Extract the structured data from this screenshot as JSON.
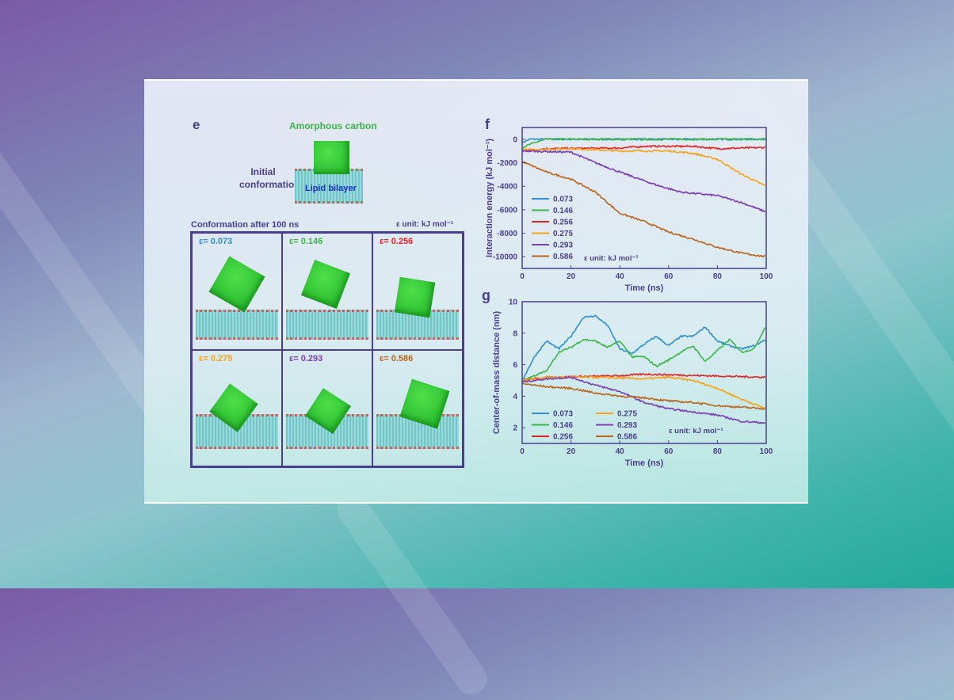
{
  "panel_e": {
    "label": "e",
    "top_label": "Amorphous carbon",
    "initial_label_1": "Initial",
    "initial_label_2": "conformation",
    "bilayer_label": "Lipid bilayer",
    "after_label": "Conformation after 100 ns",
    "unit_label": "ε unit: kJ mol⁻¹",
    "cells": [
      {
        "label": "ε= 0.073",
        "color": "#2f8fd0"
      },
      {
        "label": "ε= 0.146",
        "color": "#3bb54a"
      },
      {
        "label": "ε= 0.256",
        "color": "#e02424"
      },
      {
        "label": "ε= 0.275",
        "color": "#f7a21b"
      },
      {
        "label": "ε= 0.293",
        "color": "#7b3fb5"
      },
      {
        "label": "ε= 0.586",
        "color": "#b8651e"
      }
    ]
  },
  "chart_data": [
    {
      "panel": "f",
      "type": "line",
      "xlabel": "Time (ns)",
      "ylabel": "Interaction energy (kJ mol⁻¹)",
      "xlim": [
        0,
        100
      ],
      "ylim": [
        -11000,
        1000
      ],
      "xticks": [
        0,
        20,
        40,
        60,
        80,
        100
      ],
      "yticks": [
        0,
        -2000,
        -4000,
        -6000,
        -8000,
        -10000
      ],
      "legend": "bottom-left",
      "legend_note": "ε unit: kJ mol⁻¹",
      "series": [
        {
          "name": "0.073",
          "color": "#2f8fd0",
          "points": [
            [
              0,
              -300
            ],
            [
              3,
              0
            ],
            [
              100,
              0
            ]
          ]
        },
        {
          "name": "0.146",
          "color": "#3bb54a",
          "points": [
            [
              0,
              -700
            ],
            [
              5,
              -300
            ],
            [
              10,
              0
            ],
            [
              100,
              0
            ]
          ]
        },
        {
          "name": "0.256",
          "color": "#e02424",
          "points": [
            [
              0,
              -1000
            ],
            [
              10,
              -800
            ],
            [
              40,
              -750
            ],
            [
              50,
              -600
            ],
            [
              70,
              -600
            ],
            [
              80,
              -800
            ],
            [
              100,
              -700
            ]
          ]
        },
        {
          "name": "0.275",
          "color": "#f7a21b",
          "points": [
            [
              0,
              -900
            ],
            [
              20,
              -800
            ],
            [
              40,
              -1000
            ],
            [
              60,
              -1000
            ],
            [
              70,
              -1200
            ],
            [
              80,
              -1700
            ],
            [
              90,
              -3000
            ],
            [
              100,
              -4000
            ]
          ]
        },
        {
          "name": "0.293",
          "color": "#7b3fb5",
          "points": [
            [
              0,
              -1000
            ],
            [
              20,
              -1100
            ],
            [
              30,
              -2000
            ],
            [
              40,
              -2800
            ],
            [
              55,
              -3900
            ],
            [
              65,
              -4500
            ],
            [
              80,
              -4800
            ],
            [
              90,
              -5400
            ],
            [
              100,
              -6200
            ]
          ]
        },
        {
          "name": "0.586",
          "color": "#b8651e",
          "points": [
            [
              0,
              -1900
            ],
            [
              10,
              -2800
            ],
            [
              20,
              -3400
            ],
            [
              30,
              -4500
            ],
            [
              40,
              -6300
            ],
            [
              50,
              -7000
            ],
            [
              60,
              -7900
            ],
            [
              70,
              -8500
            ],
            [
              80,
              -9200
            ],
            [
              90,
              -9700
            ],
            [
              100,
              -10000
            ]
          ]
        }
      ]
    },
    {
      "panel": "g",
      "type": "line",
      "xlabel": "Time (ns)",
      "ylabel": "Center-of-mass distance (nm)",
      "xlim": [
        0,
        100
      ],
      "ylim": [
        1,
        10
      ],
      "xticks": [
        0,
        20,
        40,
        60,
        80,
        100
      ],
      "yticks": [
        2,
        4,
        6,
        8,
        10
      ],
      "legend": "bottom-left",
      "legend_note": "ε unit: kJ mol⁻¹",
      "series": [
        {
          "name": "0.073",
          "color": "#2f8fd0",
          "points": [
            [
              0,
              5
            ],
            [
              5,
              6.5
            ],
            [
              10,
              7.5
            ],
            [
              15,
              7
            ],
            [
              20,
              7.8
            ],
            [
              25,
              9
            ],
            [
              30,
              9.1
            ],
            [
              35,
              8.5
            ],
            [
              40,
              7
            ],
            [
              45,
              6.7
            ],
            [
              50,
              7.3
            ],
            [
              55,
              7.8
            ],
            [
              60,
              7.2
            ],
            [
              65,
              7.8
            ],
            [
              70,
              7.8
            ],
            [
              75,
              8.4
            ],
            [
              80,
              7.5
            ],
            [
              85,
              7.2
            ],
            [
              90,
              7
            ],
            [
              95,
              7.2
            ],
            [
              100,
              7.6
            ]
          ]
        },
        {
          "name": "0.146",
          "color": "#3bb54a",
          "points": [
            [
              0,
              5
            ],
            [
              10,
              5.6
            ],
            [
              15,
              6.8
            ],
            [
              20,
              7.1
            ],
            [
              25,
              7.6
            ],
            [
              30,
              7.5
            ],
            [
              35,
              7.1
            ],
            [
              40,
              7.5
            ],
            [
              45,
              6.5
            ],
            [
              50,
              6.5
            ],
            [
              55,
              5.9
            ],
            [
              60,
              6.3
            ],
            [
              65,
              6.8
            ],
            [
              70,
              7.2
            ],
            [
              75,
              6.2
            ],
            [
              80,
              6.9
            ],
            [
              85,
              7.6
            ],
            [
              90,
              6.8
            ],
            [
              95,
              7
            ],
            [
              100,
              8.5
            ]
          ]
        },
        {
          "name": "0.256",
          "color": "#e02424",
          "points": [
            [
              0,
              5
            ],
            [
              10,
              5.2
            ],
            [
              40,
              5.3
            ],
            [
              50,
              5.4
            ],
            [
              100,
              5.2
            ]
          ]
        },
        {
          "name": "0.275",
          "color": "#f7a21b",
          "points": [
            [
              0,
              5
            ],
            [
              10,
              5.2
            ],
            [
              30,
              5.2
            ],
            [
              50,
              5.1
            ],
            [
              60,
              5.2
            ],
            [
              70,
              5
            ],
            [
              80,
              4.5
            ],
            [
              90,
              3.8
            ],
            [
              100,
              3.2
            ]
          ]
        },
        {
          "name": "0.293",
          "color": "#7b3fb5",
          "points": [
            [
              0,
              4.9
            ],
            [
              10,
              5.1
            ],
            [
              20,
              5.2
            ],
            [
              30,
              4.7
            ],
            [
              40,
              4.3
            ],
            [
              50,
              3.6
            ],
            [
              60,
              3.2
            ],
            [
              70,
              3
            ],
            [
              80,
              2.8
            ],
            [
              90,
              2.4
            ],
            [
              100,
              2.3
            ]
          ]
        },
        {
          "name": "0.586",
          "color": "#b8651e",
          "points": [
            [
              0,
              4.8
            ],
            [
              10,
              4.6
            ],
            [
              20,
              4.5
            ],
            [
              30,
              4.2
            ],
            [
              40,
              4
            ],
            [
              50,
              3.9
            ],
            [
              60,
              3.7
            ],
            [
              70,
              3.6
            ],
            [
              80,
              3.4
            ],
            [
              90,
              3.3
            ],
            [
              100,
              3.2
            ]
          ]
        }
      ]
    }
  ]
}
